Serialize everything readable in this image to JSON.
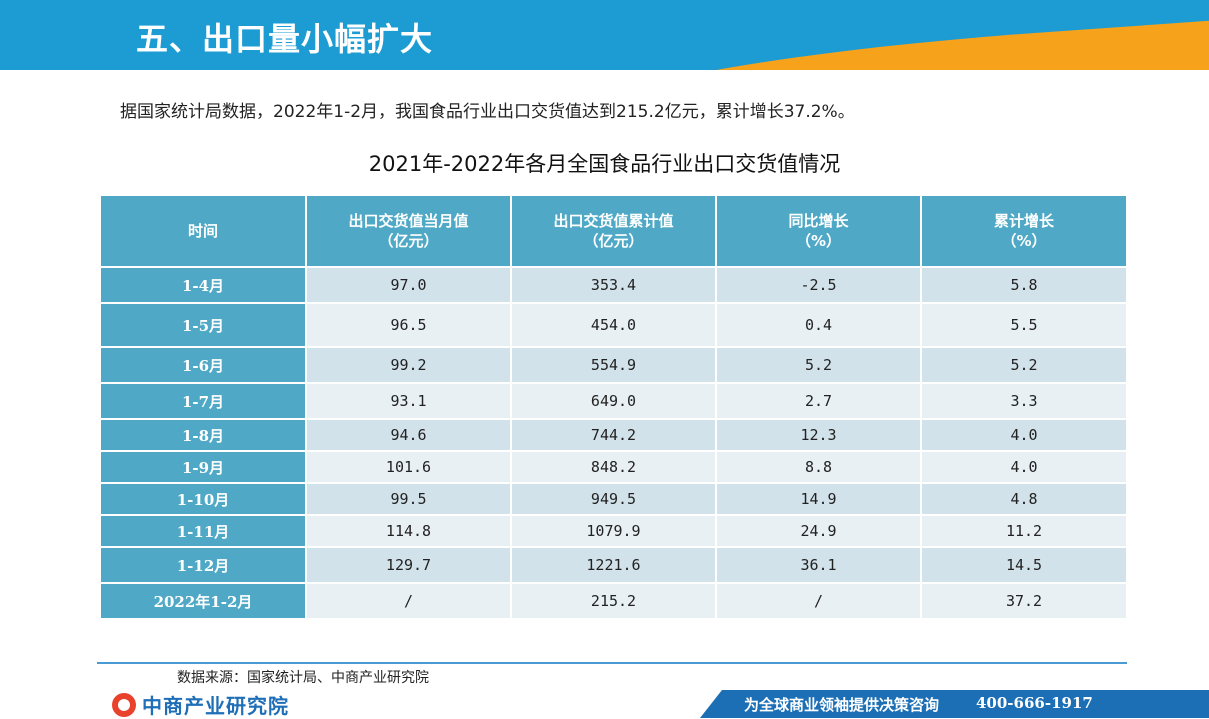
{
  "header": {
    "title": "五、出口量小幅扩大"
  },
  "intro": "据国家统计局数据，2022年1-2月，我国食品行业出口交货值达到215.2亿元，累计增长37.2%。",
  "table": {
    "title": "2021年-2022年各月全国食品行业出口交货值情况",
    "headers": [
      {
        "line1": "时间",
        "line2": ""
      },
      {
        "line1": "出口交货值当月值",
        "line2": "（亿元）"
      },
      {
        "line1": "出口交货值累计值",
        "line2": "（亿元）"
      },
      {
        "line1": "同比增长",
        "line2": "（%）"
      },
      {
        "line1": "累计增长",
        "line2": "（%）"
      }
    ],
    "rows": [
      [
        "1-4月",
        "97.0",
        "353.4",
        "-2.5",
        "5.8"
      ],
      [
        "1-5月",
        "96.5",
        "454.0",
        "0.4",
        "5.5"
      ],
      [
        "1-6月",
        "99.2",
        "554.9",
        "5.2",
        "5.2"
      ],
      [
        "1-7月",
        "93.1",
        "649.0",
        "2.7",
        "3.3"
      ],
      [
        "1-8月",
        "94.6",
        "744.2",
        "12.3",
        "4.0"
      ],
      [
        "1-9月",
        "101.6",
        "848.2",
        "8.8",
        "4.0"
      ],
      [
        "1-10月",
        "99.5",
        "949.5",
        "14.9",
        "4.8"
      ],
      [
        "1-11月",
        "114.8",
        "1079.9",
        "24.9",
        "11.2"
      ],
      [
        "1-12月",
        "129.7",
        "1221.6",
        "36.1",
        "14.5"
      ],
      [
        "2022年1-2月",
        "/",
        "215.2",
        "/",
        "37.2"
      ]
    ]
  },
  "footer": {
    "source": "数据来源：国家统计局、中商产业研究院",
    "logo_text": "中商产业研究院",
    "slogan": "为全球商业领袖提供决策咨询",
    "phone": "400-666-1917"
  },
  "colors": {
    "header_blue": "#1d9bd3",
    "header_orange": "#f7a21b",
    "table_header": "#4fa9c6",
    "row_dark": "#d2e2ea",
    "row_light": "#e8f0f4",
    "footer_blue": "#1d6fb5"
  }
}
